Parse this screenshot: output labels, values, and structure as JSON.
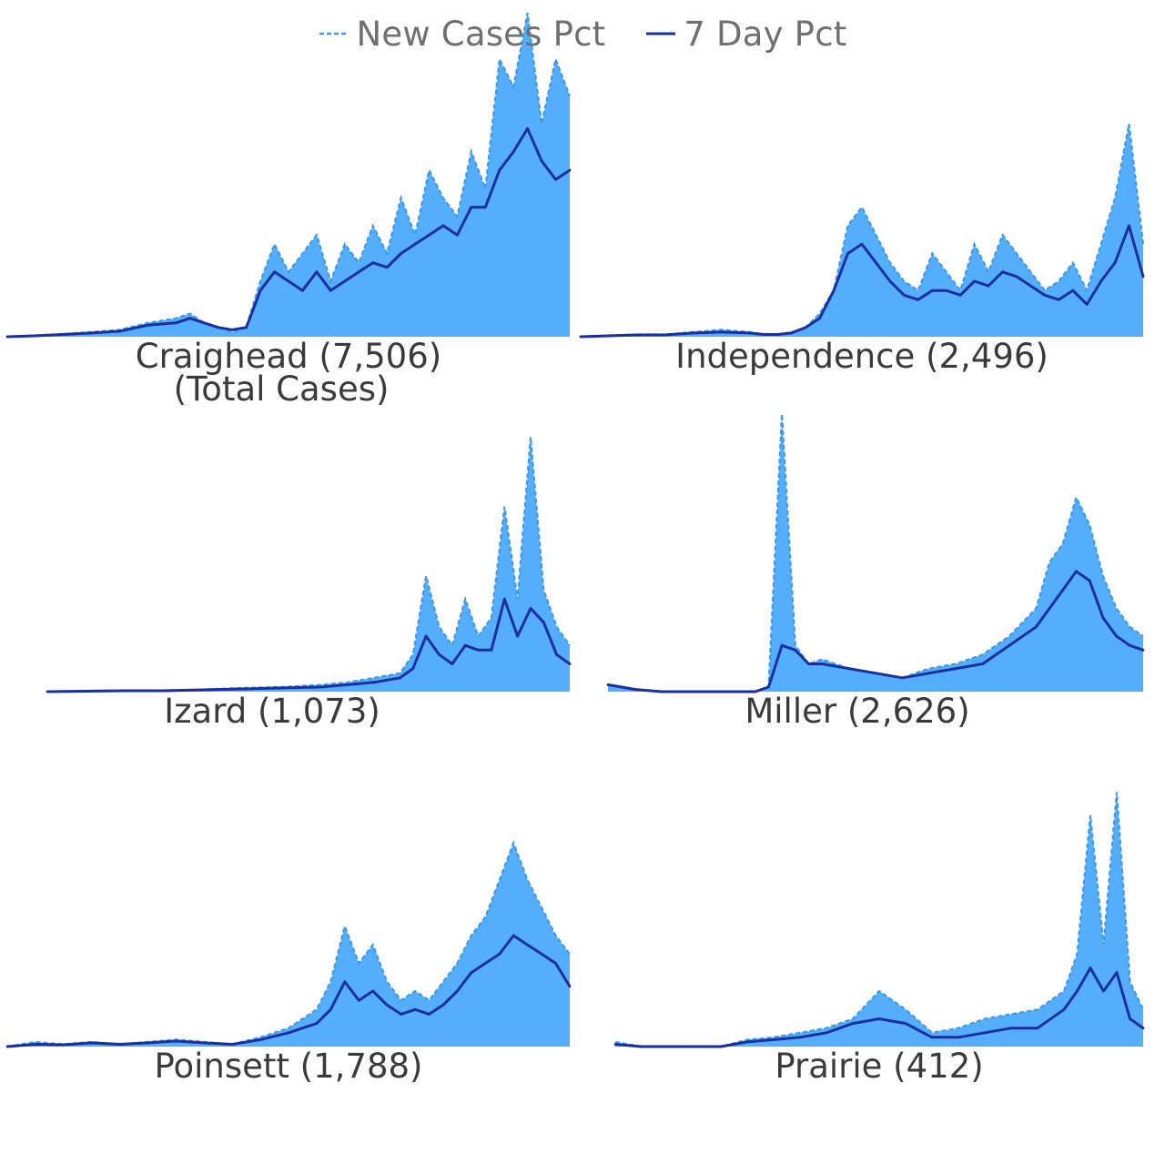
{
  "legend": {
    "new_cases_label": "New Cases Pct",
    "seven_day_label": "7 Day Pct"
  },
  "colors": {
    "bars": "#55aefc",
    "new_cases_line": "#3d9ae6",
    "seven_day_line": "#1a2fa0",
    "label": "#3a3a3a",
    "legend_text": "#6f6f6f"
  },
  "chart_data": [
    {
      "type": "area",
      "county": "Craighead",
      "title": "Craighead (7,506)",
      "subtitle": "(Total Cases)",
      "x": [
        0,
        10,
        20,
        30,
        40,
        50,
        60,
        65,
        70,
        75,
        80,
        85,
        90,
        95,
        100,
        105,
        110,
        115,
        120,
        125,
        130,
        135,
        140,
        145,
        150,
        155,
        160,
        165,
        170,
        175,
        180,
        185,
        190,
        195,
        200
      ],
      "new_cases": [
        0,
        0.3,
        0.6,
        1,
        1.5,
        3,
        4,
        5,
        3,
        2,
        1,
        2,
        12,
        20,
        14,
        18,
        22,
        12,
        20,
        16,
        24,
        18,
        30,
        22,
        36,
        30,
        26,
        40,
        32,
        60,
        54,
        70,
        46,
        60,
        52
      ],
      "seven_day": [
        0,
        0.2,
        0.5,
        0.8,
        1.2,
        2.5,
        3,
        4,
        3,
        2,
        1.5,
        2,
        10,
        14,
        12,
        10,
        14,
        10,
        12,
        14,
        16,
        15,
        18,
        20,
        22,
        24,
        22,
        28,
        28,
        36,
        40,
        45,
        38,
        34,
        36
      ],
      "ylim": [
        0,
        60
      ]
    },
    {
      "type": "area",
      "county": "Independence",
      "title": "Independence (2,496)",
      "subtitle": "",
      "x": [
        0,
        10,
        20,
        30,
        40,
        50,
        60,
        65,
        70,
        75,
        80,
        85,
        90,
        95,
        100,
        105,
        110,
        115,
        120,
        125,
        130,
        135,
        140,
        145,
        150,
        155,
        160,
        165,
        170,
        175,
        180,
        185,
        190,
        195,
        200
      ],
      "new_cases": [
        0,
        0.3,
        0.5,
        0.5,
        1,
        1.5,
        1,
        0.5,
        0.5,
        1,
        2,
        5,
        10,
        24,
        28,
        22,
        16,
        12,
        10,
        18,
        14,
        10,
        20,
        14,
        22,
        18,
        14,
        10,
        12,
        16,
        10,
        20,
        30,
        46,
        20
      ],
      "seven_day": [
        0,
        0.2,
        0.4,
        0.4,
        0.8,
        1,
        0.8,
        0.5,
        0.5,
        0.8,
        2,
        4,
        10,
        18,
        20,
        16,
        12,
        9,
        8,
        10,
        10,
        9,
        12,
        11,
        14,
        13,
        11,
        9,
        8,
        10,
        7,
        12,
        16,
        24,
        13
      ],
      "ylim": [
        0,
        60
      ]
    },
    {
      "type": "area",
      "county": "Izard",
      "title": "Izard (1,073)",
      "subtitle": "",
      "x": [
        0,
        15,
        30,
        45,
        60,
        75,
        90,
        105,
        115,
        125,
        135,
        140,
        145,
        150,
        155,
        160,
        165,
        170,
        175,
        180,
        185,
        190,
        195,
        200
      ],
      "new_cases": [
        0,
        0.2,
        0.3,
        0.3,
        0.5,
        0.8,
        1,
        1.5,
        2,
        3,
        4,
        8,
        25,
        14,
        10,
        20,
        12,
        16,
        40,
        20,
        55,
        22,
        14,
        10
      ],
      "seven_day": [
        0,
        0.1,
        0.2,
        0.2,
        0.4,
        0.6,
        0.8,
        1,
        1.5,
        2,
        3,
        5,
        12,
        8,
        6,
        10,
        9,
        9,
        20,
        12,
        18,
        15,
        8,
        6
      ],
      "ylim": [
        0,
        60
      ]
    },
    {
      "type": "area",
      "county": "Miller",
      "title": "Miller (2,626)",
      "subtitle": "",
      "x": [
        0,
        5,
        10,
        20,
        40,
        55,
        60,
        65,
        70,
        75,
        80,
        90,
        100,
        110,
        120,
        130,
        140,
        150,
        160,
        165,
        170,
        175,
        180,
        185,
        190,
        195,
        200
      ],
      "new_cases": [
        1.5,
        1,
        0.5,
        0,
        0,
        0,
        1,
        60,
        10,
        6,
        7,
        5,
        4,
        3,
        5,
        6,
        8,
        12,
        18,
        28,
        32,
        42,
        36,
        25,
        18,
        14,
        12
      ],
      "seven_day": [
        1.5,
        1,
        0.5,
        0,
        0,
        0,
        1,
        10,
        9,
        6,
        6,
        5,
        4,
        3,
        4,
        5,
        6,
        10,
        14,
        18,
        22,
        26,
        24,
        16,
        12,
        10,
        9
      ],
      "ylim": [
        0,
        60
      ]
    },
    {
      "type": "area",
      "county": "Poinsett",
      "title": "Poinsett (1,788)",
      "subtitle": "",
      "x": [
        0,
        10,
        20,
        30,
        40,
        50,
        60,
        70,
        80,
        90,
        100,
        110,
        115,
        120,
        125,
        130,
        135,
        140,
        145,
        150,
        155,
        160,
        165,
        170,
        175,
        180,
        185,
        190,
        195,
        200
      ],
      "new_cases": [
        0,
        1,
        0.5,
        1,
        0.5,
        1,
        1.5,
        1,
        0.5,
        2,
        4,
        8,
        14,
        26,
        18,
        22,
        14,
        10,
        12,
        10,
        14,
        18,
        24,
        28,
        36,
        44,
        36,
        30,
        24,
        20
      ],
      "seven_day": [
        0,
        0.5,
        0.4,
        0.8,
        0.5,
        0.8,
        1.2,
        0.8,
        0.5,
        1.5,
        3,
        5,
        8,
        14,
        10,
        12,
        9,
        7,
        8,
        7,
        9,
        12,
        16,
        18,
        20,
        24,
        22,
        20,
        18,
        13
      ],
      "ylim": [
        0,
        60
      ]
    },
    {
      "type": "area",
      "county": "Prairie",
      "title": "Prairie (412)",
      "subtitle": "",
      "x": [
        0,
        10,
        20,
        30,
        40,
        50,
        60,
        70,
        80,
        90,
        100,
        110,
        120,
        130,
        140,
        150,
        160,
        170,
        175,
        180,
        185,
        190,
        195,
        200
      ],
      "new_cases": [
        1,
        0,
        0,
        0,
        0,
        1.5,
        2,
        3,
        4,
        6,
        12,
        8,
        3,
        4,
        6,
        7,
        8,
        12,
        20,
        50,
        22,
        55,
        14,
        8
      ],
      "seven_day": [
        0.5,
        0,
        0,
        0,
        0,
        1,
        1.5,
        2,
        3,
        5,
        6,
        5,
        2,
        2,
        3,
        4,
        4,
        8,
        12,
        17,
        12,
        16,
        6,
        4
      ],
      "ylim": [
        0,
        60
      ]
    }
  ]
}
